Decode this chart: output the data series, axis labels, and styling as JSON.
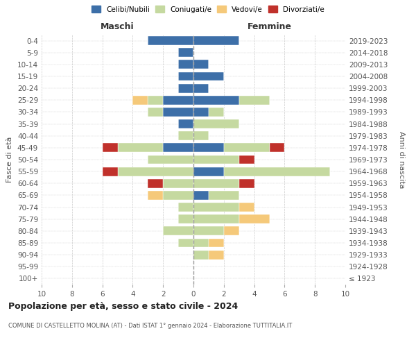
{
  "age_groups": [
    "100+",
    "95-99",
    "90-94",
    "85-89",
    "80-84",
    "75-79",
    "70-74",
    "65-69",
    "60-64",
    "55-59",
    "50-54",
    "45-49",
    "40-44",
    "35-39",
    "30-34",
    "25-29",
    "20-24",
    "15-19",
    "10-14",
    "5-9",
    "0-4"
  ],
  "birth_years": [
    "≤ 1923",
    "1924-1928",
    "1929-1933",
    "1934-1938",
    "1939-1943",
    "1944-1948",
    "1949-1953",
    "1954-1958",
    "1959-1963",
    "1964-1968",
    "1969-1973",
    "1974-1978",
    "1979-1983",
    "1984-1988",
    "1989-1993",
    "1994-1998",
    "1999-2003",
    "2004-2008",
    "2009-2013",
    "2014-2018",
    "2019-2023"
  ],
  "colors": {
    "celibi": "#3d6fa8",
    "coniugati": "#c5d9a0",
    "vedovi": "#f5c97a",
    "divorziati": "#c0312b"
  },
  "maschi": {
    "celibi": [
      0,
      0,
      0,
      0,
      0,
      0,
      0,
      0,
      0,
      0,
      0,
      2,
      0,
      1,
      2,
      2,
      1,
      1,
      1,
      1,
      3
    ],
    "coniugati": [
      0,
      0,
      0,
      1,
      2,
      1,
      1,
      2,
      2,
      5,
      3,
      3,
      1,
      0,
      1,
      1,
      0,
      0,
      0,
      0,
      0
    ],
    "vedovi": [
      0,
      0,
      0,
      0,
      0,
      0,
      0,
      1,
      0,
      0,
      0,
      0,
      0,
      0,
      0,
      1,
      0,
      0,
      0,
      0,
      0
    ],
    "divorziati": [
      0,
      0,
      0,
      0,
      0,
      0,
      0,
      0,
      1,
      1,
      0,
      1,
      0,
      0,
      0,
      0,
      0,
      0,
      0,
      0,
      0
    ]
  },
  "femmine": {
    "nubili": [
      0,
      0,
      0,
      0,
      0,
      0,
      0,
      1,
      0,
      2,
      0,
      2,
      0,
      0,
      1,
      3,
      1,
      2,
      1,
      0,
      3
    ],
    "coniugate": [
      0,
      0,
      1,
      1,
      2,
      3,
      3,
      2,
      3,
      7,
      3,
      3,
      1,
      3,
      1,
      2,
      0,
      0,
      0,
      0,
      0
    ],
    "vedove": [
      0,
      0,
      1,
      1,
      1,
      2,
      1,
      0,
      0,
      0,
      0,
      0,
      0,
      0,
      0,
      0,
      0,
      0,
      0,
      0,
      0
    ],
    "divorziate": [
      0,
      0,
      0,
      0,
      0,
      0,
      0,
      0,
      1,
      0,
      1,
      1,
      0,
      0,
      0,
      0,
      0,
      0,
      0,
      0,
      0
    ]
  },
  "title": "Popolazione per età, sesso e stato civile - 2024",
  "subtitle": "COMUNE DI CASTELLETTO MOLINA (AT) - Dati ISTAT 1° gennaio 2024 - Elaborazione TUTTITALIA.IT",
  "xlabel_left": "Maschi",
  "xlabel_right": "Femmine",
  "ylabel_left": "Fasce di età",
  "ylabel_right": "Anni di nascita",
  "xlim": 10,
  "bg_color": "#ffffff",
  "grid_color": "#cccccc"
}
